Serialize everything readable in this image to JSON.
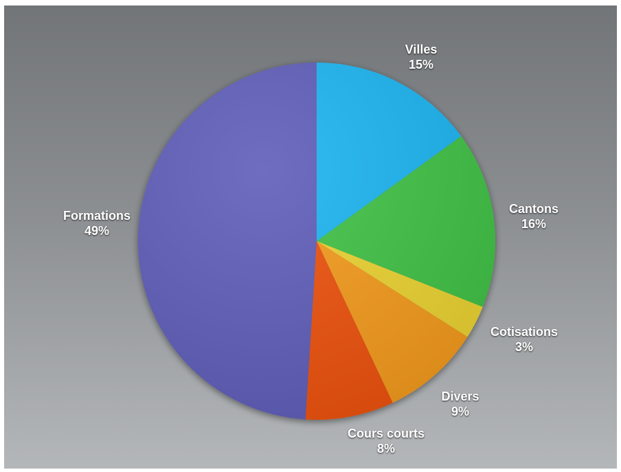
{
  "chart_data": {
    "type": "pie",
    "start_angle_deg": 0,
    "direction": "clockwise",
    "slices": [
      {
        "label": "Villes",
        "value": 15,
        "pct_text": "15%",
        "color": "#1fb4f0"
      },
      {
        "label": "Cantons",
        "value": 16,
        "pct_text": "16%",
        "color": "#3fc144"
      },
      {
        "label": "Cotisations",
        "value": 3,
        "pct_text": "3%",
        "color": "#ead233"
      },
      {
        "label": "Divers",
        "value": 9,
        "pct_text": "9%",
        "color": "#f39a1e"
      },
      {
        "label": "Cours courts",
        "value": 8,
        "pct_text": "8%",
        "color": "#ec5110"
      },
      {
        "label": "Formations",
        "value": 49,
        "pct_text": "49%",
        "color": "#5f5db8"
      }
    ]
  }
}
